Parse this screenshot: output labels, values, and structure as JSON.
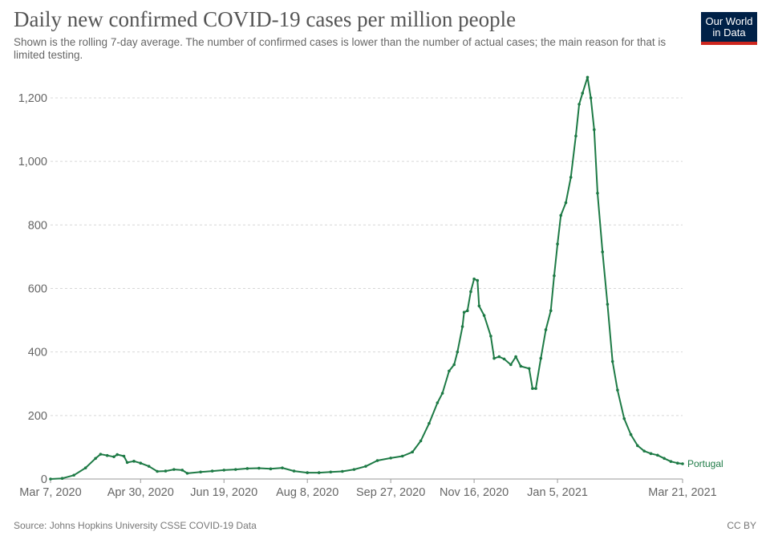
{
  "header": {
    "title": "Daily new confirmed COVID-19 cases per million people",
    "subtitle": "Shown is the rolling 7-day average. The number of confirmed cases is lower than the number of actual cases; the main reason for that is limited testing."
  },
  "logo": {
    "line1": "Our World",
    "line2": "in Data"
  },
  "footer": {
    "source": "Source: Johns Hopkins University CSSE COVID-19 Data",
    "license": "CC BY"
  },
  "chart_data": {
    "type": "line",
    "title": "Daily new confirmed COVID-19 cases per million people",
    "xlabel": "",
    "ylabel": "",
    "ylim": [
      0,
      1200
    ],
    "xlim": [
      "2020-03-07",
      "2021-03-21"
    ],
    "grid": true,
    "line_color": "#1d7a45",
    "y_ticks": [
      {
        "value": 0,
        "label": "0"
      },
      {
        "value": 200,
        "label": "200"
      },
      {
        "value": 400,
        "label": "400"
      },
      {
        "value": 600,
        "label": "600"
      },
      {
        "value": 800,
        "label": "800"
      },
      {
        "value": 1000,
        "label": "1,000"
      },
      {
        "value": 1200,
        "label": "1,200"
      }
    ],
    "x_ticks": [
      {
        "date": "2020-03-07",
        "label": "Mar 7, 2020"
      },
      {
        "date": "2020-04-30",
        "label": "Apr 30, 2020"
      },
      {
        "date": "2020-06-19",
        "label": "Jun 19, 2020"
      },
      {
        "date": "2020-08-08",
        "label": "Aug 8, 2020"
      },
      {
        "date": "2020-09-27",
        "label": "Sep 27, 2020"
      },
      {
        "date": "2020-11-16",
        "label": "Nov 16, 2020"
      },
      {
        "date": "2021-01-05",
        "label": "Jan 5, 2021"
      },
      {
        "date": "2021-03-21",
        "label": "Mar 21, 2021"
      }
    ],
    "series": [
      {
        "name": "Portugal",
        "points": [
          {
            "x": "2020-03-07",
            "y": 0
          },
          {
            "x": "2020-03-14",
            "y": 2
          },
          {
            "x": "2020-03-21",
            "y": 12
          },
          {
            "x": "2020-03-28",
            "y": 35
          },
          {
            "x": "2020-04-03",
            "y": 65
          },
          {
            "x": "2020-04-06",
            "y": 78
          },
          {
            "x": "2020-04-10",
            "y": 74
          },
          {
            "x": "2020-04-14",
            "y": 70
          },
          {
            "x": "2020-04-16",
            "y": 77
          },
          {
            "x": "2020-04-20",
            "y": 72
          },
          {
            "x": "2020-04-22",
            "y": 52
          },
          {
            "x": "2020-04-26",
            "y": 56
          },
          {
            "x": "2020-04-30",
            "y": 50
          },
          {
            "x": "2020-05-05",
            "y": 40
          },
          {
            "x": "2020-05-10",
            "y": 24
          },
          {
            "x": "2020-05-15",
            "y": 25
          },
          {
            "x": "2020-05-20",
            "y": 30
          },
          {
            "x": "2020-05-25",
            "y": 28
          },
          {
            "x": "2020-05-28",
            "y": 18
          },
          {
            "x": "2020-06-05",
            "y": 22
          },
          {
            "x": "2020-06-12",
            "y": 25
          },
          {
            "x": "2020-06-19",
            "y": 28
          },
          {
            "x": "2020-06-26",
            "y": 30
          },
          {
            "x": "2020-07-03",
            "y": 33
          },
          {
            "x": "2020-07-10",
            "y": 34
          },
          {
            "x": "2020-07-17",
            "y": 32
          },
          {
            "x": "2020-07-24",
            "y": 35
          },
          {
            "x": "2020-07-31",
            "y": 25
          },
          {
            "x": "2020-08-08",
            "y": 20
          },
          {
            "x": "2020-08-15",
            "y": 20
          },
          {
            "x": "2020-08-22",
            "y": 22
          },
          {
            "x": "2020-08-29",
            "y": 24
          },
          {
            "x": "2020-09-05",
            "y": 30
          },
          {
            "x": "2020-09-12",
            "y": 40
          },
          {
            "x": "2020-09-19",
            "y": 58
          },
          {
            "x": "2020-09-27",
            "y": 66
          },
          {
            "x": "2020-10-04",
            "y": 72
          },
          {
            "x": "2020-10-10",
            "y": 85
          },
          {
            "x": "2020-10-15",
            "y": 120
          },
          {
            "x": "2020-10-20",
            "y": 175
          },
          {
            "x": "2020-10-25",
            "y": 240
          },
          {
            "x": "2020-10-28",
            "y": 270
          },
          {
            "x": "2020-11-01",
            "y": 340
          },
          {
            "x": "2020-11-04",
            "y": 360
          },
          {
            "x": "2020-11-06",
            "y": 400
          },
          {
            "x": "2020-11-09",
            "y": 480
          },
          {
            "x": "2020-11-10",
            "y": 525
          },
          {
            "x": "2020-11-12",
            "y": 530
          },
          {
            "x": "2020-11-14",
            "y": 590
          },
          {
            "x": "2020-11-16",
            "y": 630
          },
          {
            "x": "2020-11-18",
            "y": 625
          },
          {
            "x": "2020-11-19",
            "y": 545
          },
          {
            "x": "2020-11-22",
            "y": 515
          },
          {
            "x": "2020-11-26",
            "y": 450
          },
          {
            "x": "2020-11-28",
            "y": 380
          },
          {
            "x": "2020-12-01",
            "y": 385
          },
          {
            "x": "2020-12-04",
            "y": 378
          },
          {
            "x": "2020-12-08",
            "y": 360
          },
          {
            "x": "2020-12-11",
            "y": 385
          },
          {
            "x": "2020-12-14",
            "y": 355
          },
          {
            "x": "2020-12-19",
            "y": 348
          },
          {
            "x": "2020-12-21",
            "y": 285
          },
          {
            "x": "2020-12-23",
            "y": 285
          },
          {
            "x": "2020-12-26",
            "y": 380
          },
          {
            "x": "2020-12-29",
            "y": 470
          },
          {
            "x": "2021-01-01",
            "y": 530
          },
          {
            "x": "2021-01-03",
            "y": 640
          },
          {
            "x": "2021-01-05",
            "y": 740
          },
          {
            "x": "2021-01-07",
            "y": 830
          },
          {
            "x": "2021-01-10",
            "y": 870
          },
          {
            "x": "2021-01-13",
            "y": 950
          },
          {
            "x": "2021-01-16",
            "y": 1080
          },
          {
            "x": "2021-01-18",
            "y": 1180
          },
          {
            "x": "2021-01-20",
            "y": 1215
          },
          {
            "x": "2021-01-23",
            "y": 1265
          },
          {
            "x": "2021-01-25",
            "y": 1200
          },
          {
            "x": "2021-01-27",
            "y": 1100
          },
          {
            "x": "2021-01-29",
            "y": 900
          },
          {
            "x": "2021-02-01",
            "y": 715
          },
          {
            "x": "2021-02-04",
            "y": 550
          },
          {
            "x": "2021-02-07",
            "y": 370
          },
          {
            "x": "2021-02-10",
            "y": 280
          },
          {
            "x": "2021-02-14",
            "y": 190
          },
          {
            "x": "2021-02-18",
            "y": 140
          },
          {
            "x": "2021-02-22",
            "y": 105
          },
          {
            "x": "2021-02-26",
            "y": 88
          },
          {
            "x": "2021-03-02",
            "y": 80
          },
          {
            "x": "2021-03-06",
            "y": 75
          },
          {
            "x": "2021-03-10",
            "y": 65
          },
          {
            "x": "2021-03-14",
            "y": 55
          },
          {
            "x": "2021-03-18",
            "y": 50
          },
          {
            "x": "2021-03-21",
            "y": 48
          }
        ]
      }
    ]
  }
}
